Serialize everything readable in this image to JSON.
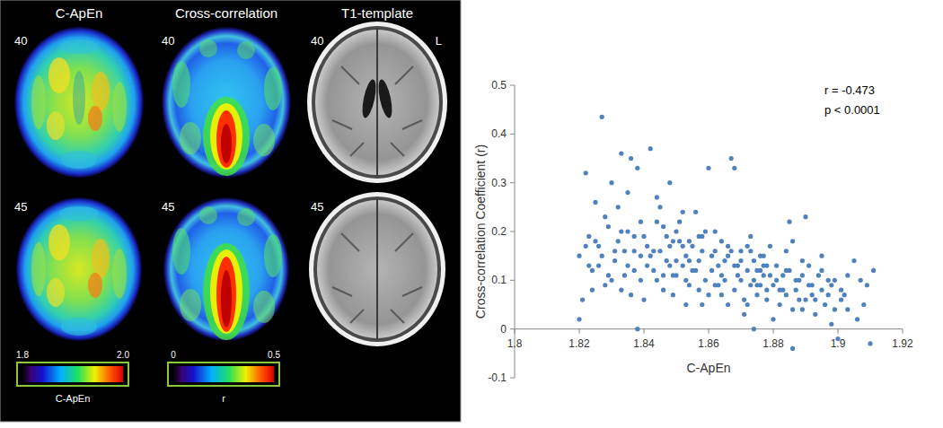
{
  "figure": {
    "columns": [
      "C-ApEn",
      "Cross-correlation",
      "T1-template"
    ],
    "slices": [
      40,
      45
    ],
    "orientation_label": "L",
    "colorbars": [
      {
        "title": "C-ApEn",
        "range": [
          1.8,
          2.0
        ],
        "ticks": [
          1.8,
          {
            "value": 2.0,
            "label": "2.0"
          }
        ]
      },
      {
        "title": "r",
        "range": [
          0,
          0.5
        ],
        "ticks": [
          0,
          0.5
        ]
      }
    ]
  },
  "chart_data": {
    "type": "scatter",
    "x_label": "C-ApEn",
    "y_label": "Cross-correlation Coefficient (r)",
    "annotations": [
      "r = -0.473",
      "p < 0.0001"
    ],
    "color": "#4f81bd",
    "marker": "circle",
    "grid": false,
    "xlim": [
      1.8,
      1.92
    ],
    "xticks": [
      1.8,
      1.82,
      1.84,
      1.86,
      1.88,
      1.9,
      1.92
    ],
    "ylim": [
      -0.1,
      0.5
    ],
    "yticks": [
      -0.1,
      0,
      0.1,
      0.2,
      0.3,
      0.4,
      0.5
    ],
    "x": [
      1.82,
      1.821,
      1.822,
      1.823,
      1.824,
      1.825,
      1.826,
      1.827,
      1.828,
      1.829,
      1.83,
      1.831,
      1.832,
      1.833,
      1.834,
      1.835,
      1.836,
      1.837,
      1.838,
      1.839,
      1.82,
      1.822,
      1.824,
      1.826,
      1.828,
      1.83,
      1.832,
      1.834,
      1.836,
      1.838,
      1.84,
      1.841,
      1.842,
      1.843,
      1.844,
      1.845,
      1.846,
      1.847,
      1.848,
      1.849,
      1.84,
      1.842,
      1.844,
      1.846,
      1.848,
      1.85,
      1.852,
      1.854,
      1.856,
      1.858,
      1.85,
      1.851,
      1.853,
      1.855,
      1.857,
      1.859,
      1.851,
      1.853,
      1.855,
      1.857,
      1.86,
      1.861,
      1.862,
      1.863,
      1.864,
      1.865,
      1.866,
      1.867,
      1.868,
      1.869,
      1.86,
      1.862,
      1.864,
      1.866,
      1.868,
      1.87,
      1.872,
      1.874,
      1.876,
      1.878,
      1.87,
      1.871,
      1.873,
      1.875,
      1.877,
      1.879,
      1.871,
      1.873,
      1.875,
      1.877,
      1.88,
      1.881,
      1.882,
      1.883,
      1.884,
      1.885,
      1.886,
      1.887,
      1.888,
      1.889,
      1.88,
      1.882,
      1.884,
      1.886,
      1.888,
      1.89,
      1.892,
      1.894,
      1.896,
      1.898,
      1.89,
      1.891,
      1.893,
      1.895,
      1.897,
      1.899,
      1.9,
      1.902,
      1.905,
      1.908,
      1.91,
      1.911,
      1.909,
      1.906,
      1.903,
      1.901,
      1.898,
      1.895,
      1.892,
      1.889,
      1.843,
      1.845,
      1.847,
      1.849,
      1.852,
      1.854,
      1.856,
      1.858,
      1.861,
      1.863,
      1.865,
      1.867,
      1.869,
      1.872,
      1.874,
      1.876,
      1.878,
      1.881,
      1.883,
      1.885,
      1.823,
      1.825,
      1.827,
      1.829,
      1.831,
      1.833,
      1.835,
      1.837,
      1.839,
      1.841,
      1.887,
      1.889,
      1.891,
      1.893,
      1.895,
      1.897,
      1.899,
      1.901,
      1.903,
      1.907,
      1.846,
      1.848,
      1.85,
      1.852,
      1.854,
      1.857,
      1.859,
      1.862,
      1.864,
      1.866,
      1.868,
      1.87,
      1.872,
      1.874,
      1.876,
      1.878,
      1.879,
      1.877,
      1.875,
      1.873,
      1.833,
      1.835,
      1.837,
      1.839,
      1.844,
      1.849,
      1.853,
      1.858,
      1.884,
      1.886
    ],
    "values": [
      0.15,
      0.06,
      0.32,
      0.19,
      0.12,
      0.26,
      0.17,
      0.435,
      0.09,
      0.21,
      0.3,
      0.14,
      0.18,
      0.36,
      0.11,
      0.2,
      0.35,
      0.16,
      0.0,
      0.22,
      0.02,
      0.17,
      0.08,
      0.13,
      0.23,
      0.1,
      0.25,
      0.16,
      0.07,
      0.33,
      0.19,
      0.13,
      0.37,
      0.16,
      0.1,
      0.25,
      0.21,
      0.14,
      0.3,
      0.18,
      0.06,
      0.15,
      0.22,
      0.11,
      0.17,
      0.2,
      0.13,
      0.09,
      0.24,
      0.16,
      0.14,
      0.18,
      0.05,
      0.12,
      0.19,
      0.1,
      0.22,
      0.15,
      0.17,
      0.08,
      0.33,
      0.12,
      0.16,
      0.09,
      0.18,
      0.14,
      0.05,
      0.35,
      0.33,
      0.11,
      0.07,
      0.2,
      0.11,
      0.15,
      0.13,
      0.1,
      0.17,
      0.0,
      0.12,
      0.08,
      0.14,
      0.06,
      0.19,
      0.09,
      0.13,
      0.11,
      0.03,
      0.16,
      0.07,
      0.15,
      0.09,
      0.13,
      0.05,
      0.11,
      0.07,
      0.22,
      -0.04,
      0.1,
      0.06,
      0.14,
      0.02,
      0.08,
      0.12,
      0.04,
      0.1,
      0.23,
      0.07,
      0.11,
      0.05,
      0.09,
      0.06,
      0.13,
      0.03,
      0.08,
      0.1,
      0.04,
      -0.02,
      0.07,
      0.14,
      0.05,
      -0.03,
      0.12,
      0.09,
      0.02,
      0.11,
      0.06,
      0.01,
      0.15,
      0.09,
      0.04,
      0.12,
      0.16,
      0.19,
      0.11,
      0.17,
      0.14,
      0.12,
      0.19,
      0.15,
      0.13,
      0.1,
      0.16,
      0.13,
      0.12,
      0.14,
      0.09,
      0.13,
      0.1,
      0.08,
      0.12,
      0.13,
      0.18,
      0.15,
      0.11,
      0.16,
      0.2,
      0.13,
      0.19,
      0.15,
      0.17,
      0.08,
      0.11,
      0.09,
      0.06,
      0.12,
      0.07,
      0.1,
      0.08,
      0.04,
      0.1,
      0.08,
      0.13,
      0.11,
      0.24,
      0.18,
      0.14,
      0.2,
      0.09,
      0.07,
      0.17,
      0.08,
      0.16,
      0.05,
      0.1,
      0.15,
      0.06,
      0.17,
      0.11,
      0.12,
      0.09,
      0.08,
      0.28,
      0.12,
      0.1,
      0.27,
      0.07,
      0.1,
      0.05,
      0.16,
      0.18
    ]
  }
}
